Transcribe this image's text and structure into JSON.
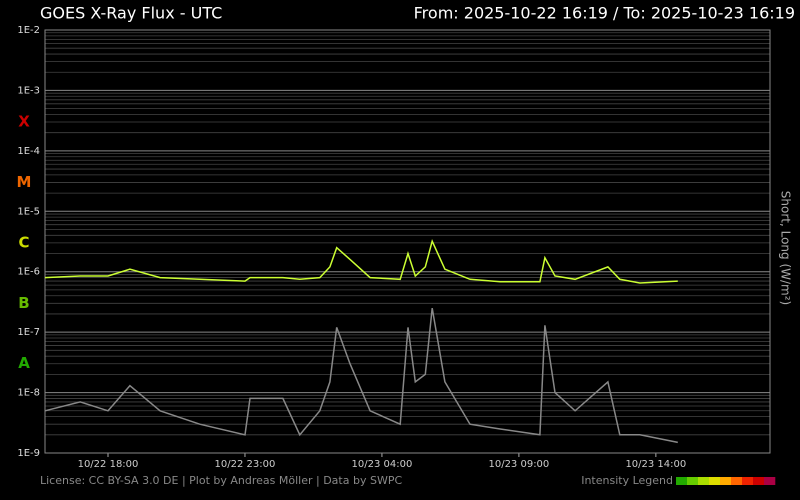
{
  "chart_data": {
    "type": "line",
    "title": "GOES X-Ray Flux - UTC",
    "subtitle": "From: 2025-10-22 16:19  /  To: 2025-10-23 16:19",
    "y_label": "Short, Long (W/m²)",
    "footer": "License: CC BY-SA 3.0 DE | Plot by Andreas Möller | Data by SWPC",
    "intensity_legend": {
      "label": "Intensity Legend",
      "colors": [
        "#22aa00",
        "#66cc00",
        "#aadd00",
        "#dddd00",
        "#ffaa00",
        "#ff6600",
        "#ee2200",
        "#cc0000",
        "#aa0044"
      ]
    },
    "log_y": true,
    "grid": true,
    "minor_grid": true,
    "xlim": [
      "2025-10-22T15:42",
      "2025-10-23T18:10"
    ],
    "xticks": [
      {
        "value": "2025-10-22T18:00",
        "label": "10/22 18:00"
      },
      {
        "value": "2025-10-22T23:00",
        "label": "10/22 23:00"
      },
      {
        "value": "2025-10-23T04:00",
        "label": "10/23 04:00"
      },
      {
        "value": "2025-10-23T09:00",
        "label": "10/23 09:00"
      },
      {
        "value": "2025-10-23T14:00",
        "label": "10/23 14:00"
      }
    ],
    "ylim": [
      1e-09,
      0.01
    ],
    "yticks": [
      {
        "value": 1e-09,
        "label": "1E-9"
      },
      {
        "value": 1e-08,
        "label": "1E-8"
      },
      {
        "value": 1e-07,
        "label": "1E-7"
      },
      {
        "value": 1e-06,
        "label": "1E-6"
      },
      {
        "value": 1e-05,
        "label": "1E-5"
      },
      {
        "value": 0.0001,
        "label": "1E-4"
      },
      {
        "value": 0.001,
        "label": "1E-3"
      },
      {
        "value": 0.01,
        "label": "1E-2"
      }
    ],
    "flare_classes": [
      {
        "label": "A",
        "value": 3e-08,
        "color": "#22aa00"
      },
      {
        "label": "B",
        "value": 3e-07,
        "color": "#66bb00"
      },
      {
        "label": "C",
        "value": 3e-06,
        "color": "#ccdd00"
      },
      {
        "label": "M",
        "value": 3e-05,
        "color": "#ee6600"
      },
      {
        "label": "X",
        "value": 0.0003,
        "color": "#cc0000"
      }
    ],
    "x": [
      "2025-10-22T15:42",
      "2025-10-22T16:59",
      "2025-10-22T18:00",
      "2025-10-22T18:48",
      "2025-10-22T19:54",
      "2025-10-22T21:21",
      "2025-10-22T23:00",
      "2025-10-22T23:11",
      "2025-10-23T00:23",
      "2025-10-23T01:00",
      "2025-10-23T01:44",
      "2025-10-23T02:06",
      "2025-10-23T02:21",
      "2025-10-23T02:50",
      "2025-10-23T03:34",
      "2025-10-23T04:40",
      "2025-10-23T04:57",
      "2025-10-23T05:13",
      "2025-10-23T05:35",
      "2025-10-23T05:50",
      "2025-10-23T06:18",
      "2025-10-23T07:13",
      "2025-10-23T08:19",
      "2025-10-23T09:46",
      "2025-10-23T09:57",
      "2025-10-23T10:19",
      "2025-10-23T11:03",
      "2025-10-23T12:15",
      "2025-10-23T12:41",
      "2025-10-23T13:25",
      "2025-10-23T14:48"
    ],
    "series": [
      {
        "name": "Short",
        "color": "#888888",
        "values": [
          5e-09,
          7e-09,
          5e-09,
          1.3e-08,
          5e-09,
          3e-09,
          2e-09,
          8e-09,
          8e-09,
          2e-09,
          5e-09,
          1.5e-08,
          1.2e-07,
          3e-08,
          5e-09,
          3e-09,
          1.2e-07,
          1.5e-08,
          2e-08,
          2.5e-07,
          1.5e-08,
          3e-09,
          2.5e-09,
          2e-09,
          1.3e-07,
          1e-08,
          5e-09,
          1.5e-08,
          2e-09,
          2e-09,
          1.5e-09
        ]
      },
      {
        "name": "Long",
        "color": "#ccff33",
        "values": [
          8e-07,
          8.5e-07,
          8.5e-07,
          1.1e-06,
          8e-07,
          7.5e-07,
          7e-07,
          8e-07,
          8e-07,
          7.5e-07,
          8e-07,
          1.2e-06,
          2.5e-06,
          1.6e-06,
          8e-07,
          7.5e-07,
          2e-06,
          8.5e-07,
          1.2e-06,
          3.2e-06,
          1.1e-06,
          7.5e-07,
          6.8e-07,
          6.8e-07,
          1.7e-06,
          8.5e-07,
          7.5e-07,
          1.2e-06,
          7.5e-07,
          6.5e-07,
          7e-07
        ]
      }
    ]
  }
}
